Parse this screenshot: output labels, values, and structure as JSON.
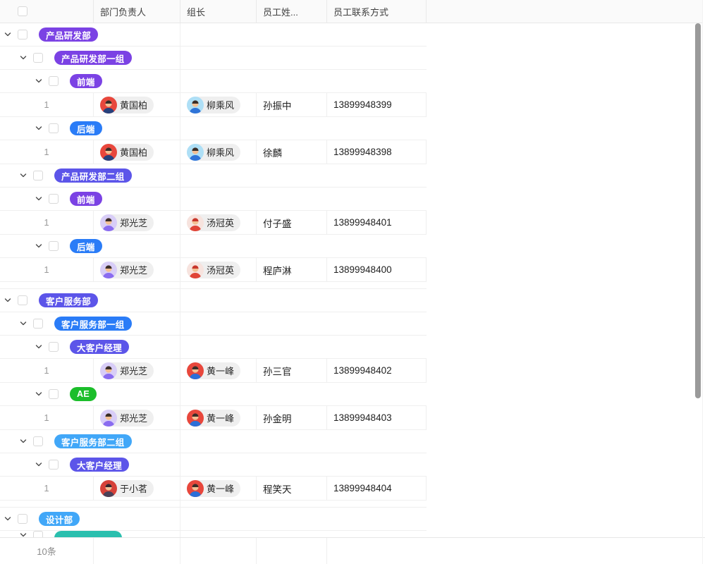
{
  "table": {
    "header": {
      "columns": [
        "",
        "部门负责人",
        "组长",
        "员工姓...",
        "员工联系方式"
      ]
    },
    "badge_colors": {
      "purple": "#7b42e4",
      "indigo": "#5c55e9",
      "blue": "#2a7cf7",
      "lightblue": "#41a7f8",
      "green": "#1cbe2b",
      "teal": "#2abfae"
    },
    "avatars": {
      "huangguobai": {
        "bg": "#e8473c",
        "torso": "#26417c",
        "hair": "#3a2d28"
      },
      "liuchengfeng": {
        "bg": "#aedff6",
        "torso": "#2f74d8",
        "hair": "#3a2d28"
      },
      "zhengguangzhi": {
        "bg": "#d8cdf7",
        "torso": "#8a6cf0",
        "hair": "#3a2d28"
      },
      "tangguanying": {
        "bg": "#f7e3de",
        "torso": "#e04437",
        "hair": "#c8352a"
      },
      "huangyifeng": {
        "bg": "#e8473c",
        "torso": "#2b6fd8",
        "hair": "#3a2d28"
      },
      "yuxiaoming": {
        "bg": "#d64139",
        "torso": "#4a4158",
        "hair": "#33262f"
      }
    },
    "rows": [
      {
        "type": "group",
        "level": 0,
        "label": "产品研发部",
        "color": "purple"
      },
      {
        "type": "group",
        "level": 1,
        "label": "产品研发部一组",
        "color": "purple"
      },
      {
        "type": "group",
        "level": 2,
        "label": "前端",
        "color": "purple"
      },
      {
        "type": "data",
        "index": "1",
        "department_head": "黄国柏",
        "department_head_avatar": "huangguobai",
        "group_leader": "柳乘风",
        "group_leader_avatar": "liuchengfeng",
        "employee_name": "孙振中",
        "phone": "13899948399"
      },
      {
        "type": "group",
        "level": 2,
        "label": "后端",
        "color": "blue"
      },
      {
        "type": "data",
        "index": "1",
        "department_head": "黄国柏",
        "department_head_avatar": "huangguobai",
        "group_leader": "柳乘风",
        "group_leader_avatar": "liuchengfeng",
        "employee_name": "徐麟",
        "phone": "13899948398"
      },
      {
        "type": "group",
        "level": 1,
        "label": "产品研发部二组",
        "color": "indigo"
      },
      {
        "type": "group",
        "level": 2,
        "label": "前端",
        "color": "purple"
      },
      {
        "type": "data",
        "index": "1",
        "department_head": "郑光芝",
        "department_head_avatar": "zhengguangzhi",
        "group_leader": "汤冠英",
        "group_leader_avatar": "tangguanying",
        "employee_name": "付子盛",
        "phone": "13899948401"
      },
      {
        "type": "group",
        "level": 2,
        "label": "后端",
        "color": "blue"
      },
      {
        "type": "data",
        "index": "1",
        "department_head": "郑光芝",
        "department_head_avatar": "zhengguangzhi",
        "group_leader": "汤冠英",
        "group_leader_avatar": "tangguanying",
        "employee_name": "程庐淋",
        "phone": "13899948400"
      },
      {
        "type": "spacer"
      },
      {
        "type": "group",
        "level": 0,
        "label": "客户服务部",
        "color": "indigo"
      },
      {
        "type": "group",
        "level": 1,
        "label": "客户服务部一组",
        "color": "blue"
      },
      {
        "type": "group",
        "level": 2,
        "label": "大客户经理",
        "color": "indigo"
      },
      {
        "type": "data",
        "index": "1",
        "department_head": "郑光芝",
        "department_head_avatar": "zhengguangzhi",
        "group_leader": "黄一峰",
        "group_leader_avatar": "huangyifeng",
        "employee_name": "孙三官",
        "phone": "13899948402"
      },
      {
        "type": "group",
        "level": 2,
        "label": "AE",
        "color": "green"
      },
      {
        "type": "data",
        "index": "1",
        "department_head": "郑光芝",
        "department_head_avatar": "zhengguangzhi",
        "group_leader": "黄一峰",
        "group_leader_avatar": "huangyifeng",
        "employee_name": "孙金明",
        "phone": "13899948403"
      },
      {
        "type": "group",
        "level": 1,
        "label": "客户服务部二组",
        "color": "lightblue"
      },
      {
        "type": "group",
        "level": 2,
        "label": "大客户经理",
        "color": "indigo"
      },
      {
        "type": "data",
        "index": "1",
        "department_head": "于小茗",
        "department_head_avatar": "yuxiaoming",
        "group_leader": "黄一峰",
        "group_leader_avatar": "huangyifeng",
        "employee_name": "程笑天",
        "phone": "13899948404"
      },
      {
        "type": "spacer"
      },
      {
        "type": "group",
        "level": 0,
        "label": "设计部",
        "color": "lightblue"
      },
      {
        "type": "group",
        "level": 1,
        "label": "",
        "color": "teal",
        "clipped": true
      }
    ],
    "footer": {
      "summary": "10条"
    }
  }
}
